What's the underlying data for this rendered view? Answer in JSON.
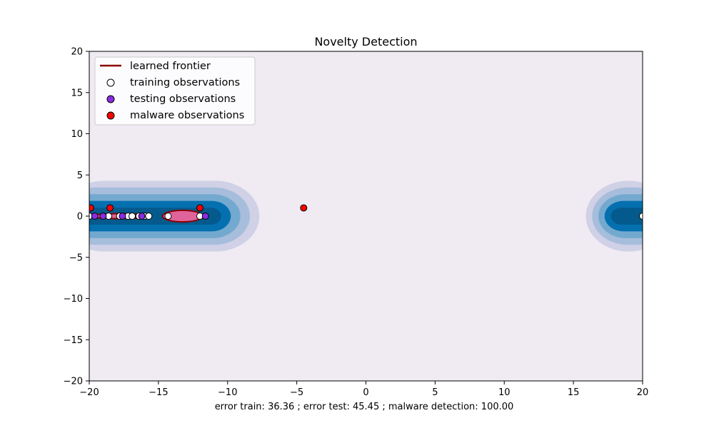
{
  "chart_data": {
    "type": "scatter",
    "title": "Novelty Detection",
    "xlabel": "error train: 36.36 ; error test: 45.45 ; malware detection: 100.00",
    "ylabel": "",
    "xlim": [
      -20,
      20
    ],
    "ylim": [
      -20,
      20
    ],
    "xticks": [
      "−20",
      "−15",
      "−10",
      "−5",
      "0",
      "5",
      "10",
      "15",
      "20"
    ],
    "yticks": [
      "20",
      "15",
      "10",
      "5",
      "0",
      "−5",
      "−10",
      "−15",
      "−20"
    ],
    "xtick_values": [
      -20,
      -15,
      -10,
      -5,
      0,
      5,
      10,
      15,
      20
    ],
    "ytick_values": [
      20,
      15,
      10,
      5,
      0,
      -5,
      -10,
      -15,
      -20
    ],
    "grid": false,
    "legend_placement": "upper-left",
    "legend": [
      {
        "label": "learned frontier",
        "kind": "line",
        "color": "#8b0000"
      },
      {
        "label": "training observations",
        "kind": "marker",
        "color": "#ffffff"
      },
      {
        "label": "testing observations",
        "kind": "marker",
        "color": "#8a2be2"
      },
      {
        "label": "malware observations",
        "kind": "marker",
        "color": "#ff0000"
      }
    ],
    "contour": {
      "description": "decision-function filled contours (PuBu)",
      "centers_y": 0,
      "regions": [
        {
          "x_from": -20,
          "x_to": -7.7,
          "half_height": 4.3
        },
        {
          "x_from": 15.9,
          "x_to": 20,
          "half_height": 4.3
        }
      ],
      "levels_colors": [
        "#d0d1e6",
        "#a6bddb",
        "#74a9cf",
        "#0570b0",
        "#045a8d"
      ]
    },
    "frontier": {
      "color": "#8b0000",
      "fill": "#e0649a",
      "shapes": [
        {
          "x_from": -20,
          "x_to": -15.6,
          "half_height": 0.3
        },
        {
          "x_from": -14.7,
          "x_to": -11.8,
          "half_height": 0.7
        }
      ]
    },
    "series": [
      {
        "name": "training observations",
        "color": "#ffffff",
        "points": [
          [
            -20,
            0
          ],
          [
            -18.6,
            0
          ],
          [
            -17.8,
            0
          ],
          [
            -17.2,
            0
          ],
          [
            -16.9,
            0
          ],
          [
            -16.4,
            0
          ],
          [
            -16.0,
            0
          ],
          [
            -15.7,
            0
          ],
          [
            -14.3,
            0
          ],
          [
            -12.0,
            0
          ],
          [
            20,
            0
          ]
        ]
      },
      {
        "name": "testing observations",
        "color": "#8a2be2",
        "points": [
          [
            -19.6,
            0
          ],
          [
            -19.0,
            0
          ],
          [
            -17.6,
            0
          ],
          [
            -16.2,
            0
          ],
          [
            -11.6,
            0
          ]
        ]
      },
      {
        "name": "malware observations",
        "color": "#ff0000",
        "points": [
          [
            -19.9,
            1
          ],
          [
            -18.5,
            1
          ],
          [
            -12.0,
            1
          ],
          [
            -4.5,
            1
          ]
        ]
      }
    ]
  }
}
